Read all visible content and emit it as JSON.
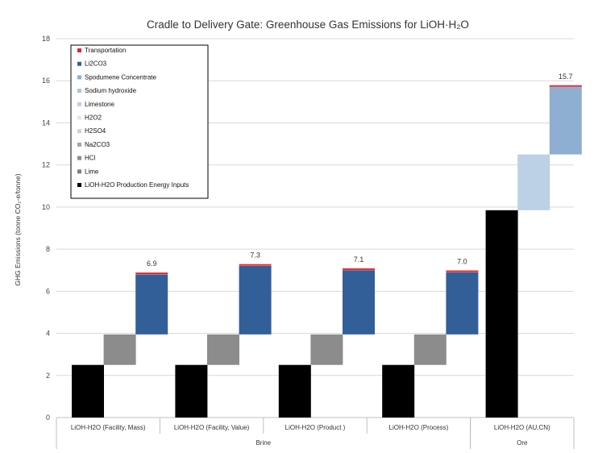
{
  "chart_data": {
    "type": "bar",
    "subtype": "stacked-waterfall",
    "title": "Cradle to Delivery Gate: Greenhouse Gas Emissions for LiOH·H₂O",
    "ylabel": "GHG Emissions (tonne CO₂-e/tonne)",
    "xlabel": "",
    "ylim": [
      0,
      18
    ],
    "yticks": [
      0,
      2,
      4,
      6,
      8,
      10,
      12,
      14,
      16,
      18
    ],
    "grid": true,
    "legend_position": "top-left",
    "categories": [
      "LiOH-H2O (Facility, Mass)",
      "LiOH-H2O (Facility, Value)",
      "LiOH-H2O (Product )",
      "LiOH-H2O (Process)",
      "LiOH-H2O (AU,CN)"
    ],
    "groups": [
      {
        "label": "Brine",
        "span": [
          0,
          3
        ]
      },
      {
        "label": "Ore",
        "span": [
          4,
          4
        ]
      }
    ],
    "totals_labels": [
      "6.9",
      "7.3",
      "7.1",
      "7.0",
      "15.7"
    ],
    "series": [
      {
        "name": "LiOH-H2O Production Energy Inputs",
        "color": "#000000",
        "values": [
          2.5,
          2.5,
          2.5,
          2.5,
          9.85
        ]
      },
      {
        "name": "Lime",
        "color": "#7f7f7f",
        "values": [
          0,
          0,
          0,
          0,
          0
        ]
      },
      {
        "name": "HCl",
        "color": "#8c8c8c",
        "values": [
          1.45,
          1.45,
          1.45,
          1.45,
          0
        ]
      },
      {
        "name": "Na2CO3",
        "color": "#a6a6a6",
        "values": [
          0,
          0,
          0,
          0,
          0
        ]
      },
      {
        "name": "H2SO4",
        "color": "#d0d0d0",
        "values": [
          0,
          0,
          0,
          0,
          0
        ]
      },
      {
        "name": "H2O2",
        "color": "#e6e6e6",
        "values": [
          0,
          0,
          0,
          0,
          0
        ]
      },
      {
        "name": "Limestone",
        "color": "#bcd0e6",
        "values": [
          0,
          0,
          0,
          0,
          2.65
        ]
      },
      {
        "name": "Sodium hydroxide",
        "color": "#a9c2dc",
        "values": [
          0,
          0,
          0,
          0,
          0
        ]
      },
      {
        "name": "Spodumene Concentrate",
        "color": "#8eaed2",
        "values": [
          0,
          0,
          0,
          0,
          3.2
        ]
      },
      {
        "name": "Li2CO3",
        "color": "#335f99",
        "values": [
          2.85,
          3.25,
          3.05,
          2.95,
          0
        ]
      },
      {
        "name": "Transportation",
        "color": "#e1262b",
        "values": [
          0.05,
          0.05,
          0.05,
          0.05,
          0.05
        ]
      }
    ]
  }
}
